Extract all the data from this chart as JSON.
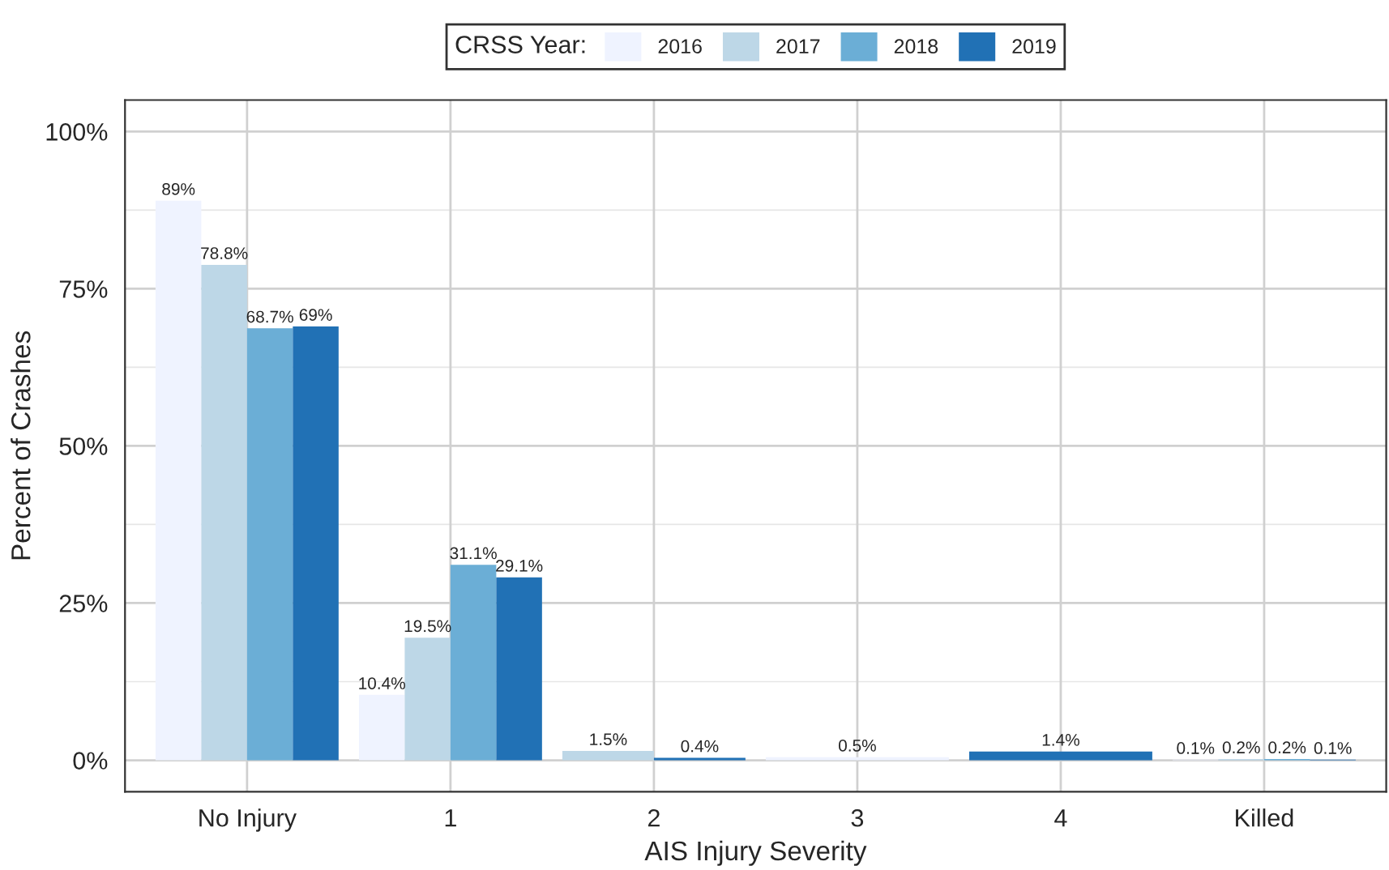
{
  "chart_data": {
    "type": "bar",
    "xlabel": "AIS Injury Severity",
    "ylabel": "Percent of Crashes",
    "legend_title": "CRSS Year:",
    "categories": [
      "No Injury",
      "1",
      "2",
      "3",
      "4",
      "Killed"
    ],
    "series": [
      {
        "name": "2016",
        "color": "#eff3ff",
        "values": [
          89,
          10.4,
          null,
          0.5,
          null,
          0.1
        ],
        "value_labels": [
          "89%",
          "10.4%",
          null,
          "0.5%",
          null,
          "0.1%"
        ]
      },
      {
        "name": "2017",
        "color": "#bdd7e7",
        "values": [
          78.8,
          19.5,
          1.5,
          null,
          null,
          0.2
        ],
        "value_labels": [
          "78.8%",
          "19.5%",
          "1.5%",
          null,
          null,
          "0.2%"
        ]
      },
      {
        "name": "2018",
        "color": "#6baed6",
        "values": [
          68.7,
          31.1,
          null,
          null,
          null,
          0.2
        ],
        "value_labels": [
          "68.7%",
          "31.1%",
          null,
          null,
          null,
          "0.2%"
        ]
      },
      {
        "name": "2019",
        "color": "#2171b5",
        "values": [
          69,
          29.1,
          0.4,
          null,
          1.4,
          0.1
        ],
        "value_labels": [
          "69%",
          "29.1%",
          "0.4%",
          null,
          "1.4%",
          "0.1%"
        ]
      }
    ],
    "ylim": [
      -5,
      105
    ],
    "yticks": [
      {
        "value": 0,
        "label": "0%"
      },
      {
        "value": 25,
        "label": "25%"
      },
      {
        "value": 50,
        "label": "50%"
      },
      {
        "value": 75,
        "label": "75%"
      },
      {
        "value": 100,
        "label": "100%"
      }
    ],
    "grid": true,
    "legend": "top"
  }
}
